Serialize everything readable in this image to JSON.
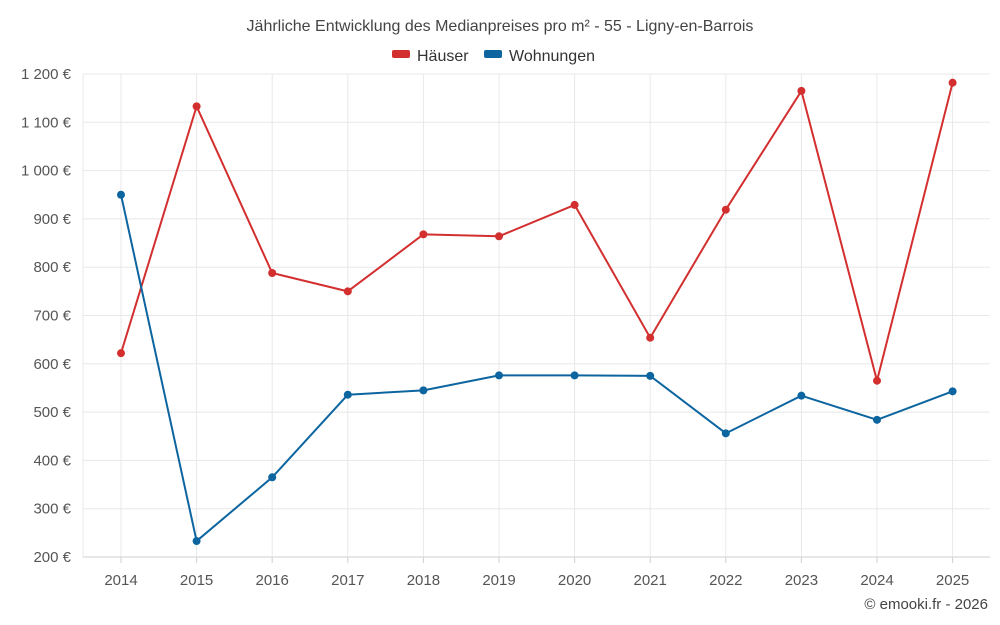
{
  "chart_data": {
    "type": "line",
    "title": "Jährliche Entwicklung des Medianpreises pro m² - 55 - Ligny-en-Barrois",
    "xlabel": "",
    "ylabel": "",
    "categories": [
      "2014",
      "2015",
      "2016",
      "2017",
      "2018",
      "2019",
      "2020",
      "2021",
      "2022",
      "2023",
      "2024",
      "2025"
    ],
    "ylim": [
      200,
      1200
    ],
    "yticks": [
      200,
      300,
      400,
      500,
      600,
      700,
      800,
      900,
      1000,
      1100,
      1200
    ],
    "ytick_labels": [
      "200 €",
      "300 €",
      "400 €",
      "500 €",
      "600 €",
      "700 €",
      "800 €",
      "900 €",
      "1 000 €",
      "1 100 €",
      "1 200 €"
    ],
    "grid": true,
    "legend_position": "top-center",
    "series": [
      {
        "name": "Häuser",
        "color": "#d32f2f",
        "values": [
          622,
          1133,
          788,
          750,
          868,
          864,
          929,
          654,
          919,
          1165,
          565,
          1182
        ]
      },
      {
        "name": "Wohnungen",
        "color": "#0d65a0",
        "values": [
          950,
          233,
          365,
          536,
          545,
          576,
          576,
          575,
          456,
          534,
          484,
          543
        ]
      }
    ],
    "copyright": "© emooki.fr - 2026"
  }
}
